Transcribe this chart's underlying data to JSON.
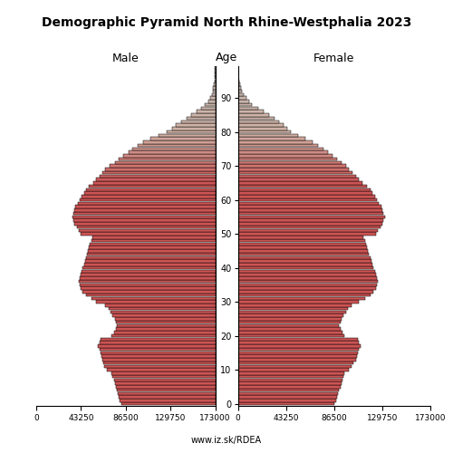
{
  "title": "Demographic Pyramid North Rhine-Westphalia 2023",
  "label_male": "Male",
  "label_female": "Female",
  "label_age": "Age",
  "source": "www.iz.sk/RDEA",
  "xlim": 173000,
  "male": [
    91000,
    92000,
    93000,
    94000,
    95000,
    96000,
    97000,
    98000,
    99000,
    100000,
    105000,
    107000,
    108000,
    109000,
    110000,
    111000,
    112000,
    113000,
    112000,
    111000,
    100000,
    98000,
    96000,
    95000,
    96000,
    97000,
    99000,
    101000,
    103000,
    106000,
    115000,
    120000,
    125000,
    128000,
    130000,
    131000,
    132000,
    131000,
    130000,
    129000,
    128000,
    127000,
    126000,
    125000,
    124000,
    123000,
    122000,
    121000,
    120000,
    119000,
    130000,
    132000,
    134000,
    136000,
    137000,
    138000,
    137000,
    136000,
    135000,
    133000,
    131000,
    129000,
    127000,
    125000,
    122000,
    118000,
    115000,
    112000,
    109000,
    106000,
    102000,
    97000,
    93000,
    89000,
    84000,
    80000,
    75000,
    70000,
    63000,
    55000,
    47000,
    42000,
    38000,
    33000,
    28000,
    23000,
    18000,
    14000,
    10000,
    7000,
    5000,
    3500,
    2500,
    1800,
    1200,
    800,
    500,
    300,
    150,
    80
  ],
  "female": [
    87000,
    88000,
    89000,
    90000,
    91000,
    92000,
    93000,
    94000,
    95000,
    96000,
    100000,
    102000,
    104000,
    106000,
    107000,
    108000,
    109000,
    110000,
    109000,
    108000,
    96000,
    94000,
    92000,
    91000,
    92000,
    93000,
    95000,
    97000,
    99000,
    102000,
    109000,
    114000,
    119000,
    122000,
    124000,
    125000,
    126000,
    125000,
    124000,
    123000,
    122000,
    121000,
    120000,
    119000,
    118000,
    117000,
    116000,
    115000,
    114000,
    113000,
    124000,
    126000,
    128000,
    130000,
    131000,
    132000,
    131000,
    130000,
    129000,
    127000,
    125000,
    123000,
    121000,
    119000,
    116000,
    112000,
    109000,
    106000,
    103000,
    100000,
    97000,
    93000,
    89000,
    85000,
    81000,
    77000,
    72000,
    67000,
    61000,
    54000,
    48000,
    44000,
    41000,
    37000,
    33000,
    28000,
    23000,
    18000,
    13000,
    10000,
    7500,
    5500,
    4000,
    2800,
    1900,
    1200,
    750,
    450,
    220,
    100
  ],
  "age_yticks": [
    0,
    10,
    20,
    30,
    40,
    50,
    60,
    70,
    80,
    90
  ],
  "xtick_labels_male": [
    "173000",
    "129750",
    "86500",
    "43250",
    "0"
  ],
  "xtick_labels_female": [
    "0",
    "43250",
    "86500",
    "129750",
    "173000"
  ],
  "color_young": [
    0.8,
    0.33,
    0.33
  ],
  "color_mid": [
    0.85,
    0.55,
    0.5
  ],
  "color_old": [
    0.82,
    0.7,
    0.65
  ],
  "color_vold": [
    0.76,
    0.72,
    0.7
  ],
  "color_break1": 65,
  "color_break2": 80
}
